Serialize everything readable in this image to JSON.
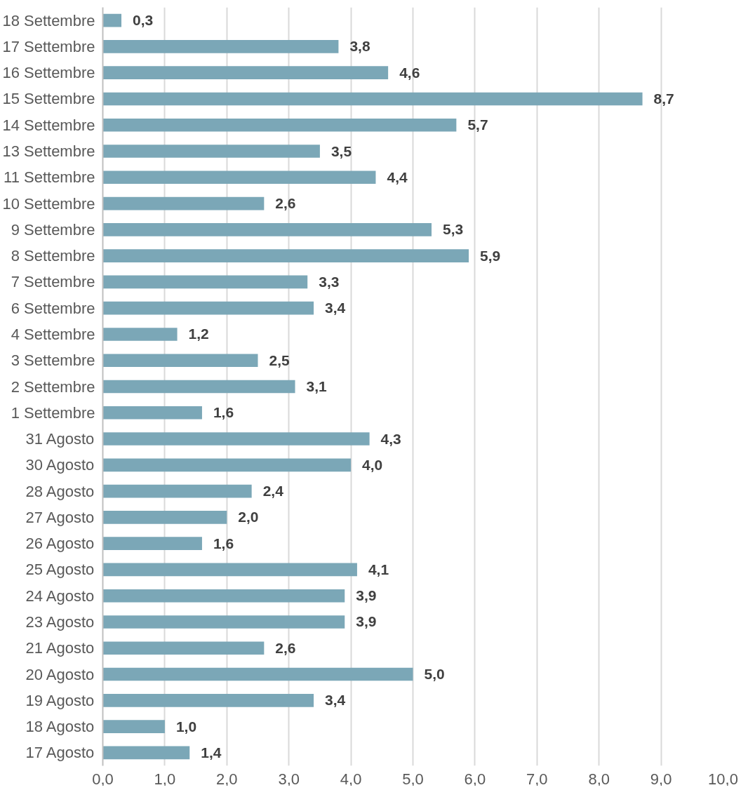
{
  "chart_data": {
    "type": "bar",
    "orientation": "horizontal",
    "categories": [
      "18 Settembre",
      "17 Settembre",
      "16 Settembre",
      "15 Settembre",
      "14 Settembre",
      "13 Settembre",
      "11 Settembre",
      "10 Settembre",
      "9 Settembre",
      "8 Settembre",
      "7 Settembre",
      "6 Settembre",
      "4 Settembre",
      "3 Settembre",
      "2 Settembre",
      "1 Settembre",
      "31 Agosto",
      "30 Agosto",
      "28 Agosto",
      "27 Agosto",
      "26 Agosto",
      "25 Agosto",
      "24 Agosto",
      "23 Agosto",
      "21 Agosto",
      "20 Agosto",
      "19 Agosto",
      "18 Agosto",
      "17 Agosto"
    ],
    "values": [
      0.3,
      3.8,
      4.6,
      8.7,
      5.7,
      3.5,
      4.4,
      2.6,
      5.3,
      5.9,
      3.3,
      3.4,
      1.2,
      2.5,
      3.1,
      1.6,
      4.3,
      4.0,
      2.4,
      2.0,
      1.6,
      4.1,
      3.9,
      3.9,
      2.6,
      5.0,
      3.4,
      1.0,
      1.4
    ],
    "value_labels": [
      "0,3",
      "3,8",
      "4,6",
      "8,7",
      "5,7",
      "3,5",
      "4,4",
      "2,6",
      "5,3",
      "5,9",
      "3,3",
      "3,4",
      "1,2",
      "2,5",
      "3,1",
      "1,6",
      "4,3",
      "4,0",
      "2,4",
      "2,0",
      "1,6",
      "4,1",
      "3,9",
      "3,9",
      "2,6",
      "5,0",
      "3,4",
      "1,0",
      "1,4"
    ],
    "color": "#7ba7b7",
    "xlim": [
      0,
      10
    ],
    "xticks": [
      {
        "value": 0,
        "label": "0,0"
      },
      {
        "value": 1,
        "label": "1,0"
      },
      {
        "value": 2,
        "label": "2,0"
      },
      {
        "value": 3,
        "label": "3,0"
      },
      {
        "value": 4,
        "label": "4,0"
      },
      {
        "value": 5,
        "label": "5,0"
      },
      {
        "value": 6,
        "label": "6,0"
      },
      {
        "value": 7,
        "label": "7,0"
      },
      {
        "value": 8,
        "label": "8,0"
      },
      {
        "value": 9,
        "label": "9,0"
      },
      {
        "value": 10,
        "label": "10,0"
      }
    ],
    "grid": "x"
  }
}
